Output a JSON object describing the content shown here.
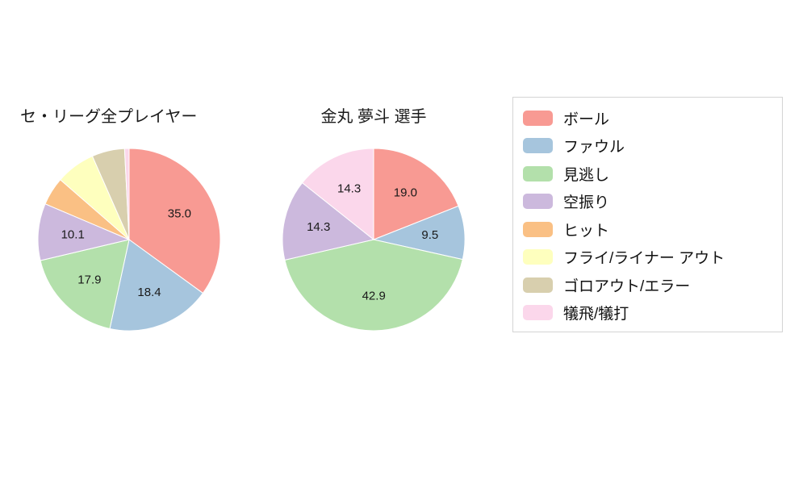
{
  "legend": {
    "items": [
      {
        "key": "ball",
        "label": "ボール",
        "color": "#f89a93"
      },
      {
        "key": "foul",
        "label": "ファウル",
        "color": "#a6c5dd"
      },
      {
        "key": "looking",
        "label": "見逃し",
        "color": "#b3e0ab"
      },
      {
        "key": "swinging",
        "label": "空振り",
        "color": "#ccb9dd"
      },
      {
        "key": "hit",
        "label": "ヒット",
        "color": "#fac084"
      },
      {
        "key": "fly-liner-out",
        "label": "フライ/ライナー アウト",
        "color": "#feffbe"
      },
      {
        "key": "groundout-error",
        "label": "ゴロアウト/エラー",
        "color": "#d8cfae"
      },
      {
        "key": "sacrifice",
        "label": "犠飛/犠打",
        "color": "#fbd7eb"
      }
    ]
  },
  "chart_data": [
    {
      "type": "pie",
      "title": "セ・リーグ全プレイヤー",
      "start_angle_deg": 90,
      "direction": "clockwise",
      "units": "percent",
      "slices": [
        {
          "key": "ball",
          "label": "ボール",
          "value": 35.0,
          "display": "35.0",
          "color": "#f89a93"
        },
        {
          "key": "foul",
          "label": "ファウル",
          "value": 18.4,
          "display": "18.4",
          "color": "#a6c5dd"
        },
        {
          "key": "looking",
          "label": "見逃し",
          "value": 17.9,
          "display": "17.9",
          "color": "#b3e0ab"
        },
        {
          "key": "swinging",
          "label": "空振り",
          "value": 10.1,
          "display": "10.1",
          "color": "#ccb9dd"
        },
        {
          "key": "hit",
          "label": "ヒット",
          "value": 5.0,
          "display": "",
          "color": "#fac084"
        },
        {
          "key": "fly-liner-out",
          "label": "フライ/ライナー アウト",
          "value": 7.0,
          "display": "",
          "color": "#feffbe"
        },
        {
          "key": "groundout-error",
          "label": "ゴロアウト/エラー",
          "value": 5.8,
          "display": "",
          "color": "#d8cfae"
        },
        {
          "key": "sacrifice",
          "label": "犠飛/犠打",
          "value": 0.8,
          "display": "",
          "color": "#fbd7eb"
        }
      ]
    },
    {
      "type": "pie",
      "title": "金丸 夢斗 選手",
      "start_angle_deg": 90,
      "direction": "clockwise",
      "units": "percent",
      "slices": [
        {
          "key": "ball",
          "label": "ボール",
          "value": 19.0,
          "display": "19.0",
          "color": "#f89a93"
        },
        {
          "key": "foul",
          "label": "ファウル",
          "value": 9.5,
          "display": "9.5",
          "color": "#a6c5dd"
        },
        {
          "key": "looking",
          "label": "見逃し",
          "value": 42.9,
          "display": "42.9",
          "color": "#b3e0ab"
        },
        {
          "key": "swinging",
          "label": "空振り",
          "value": 14.3,
          "display": "14.3",
          "color": "#ccb9dd"
        },
        {
          "key": "sacrifice",
          "label": "犠飛/犠打",
          "value": 14.3,
          "display": "14.3",
          "color": "#fbd7eb"
        }
      ]
    }
  ]
}
